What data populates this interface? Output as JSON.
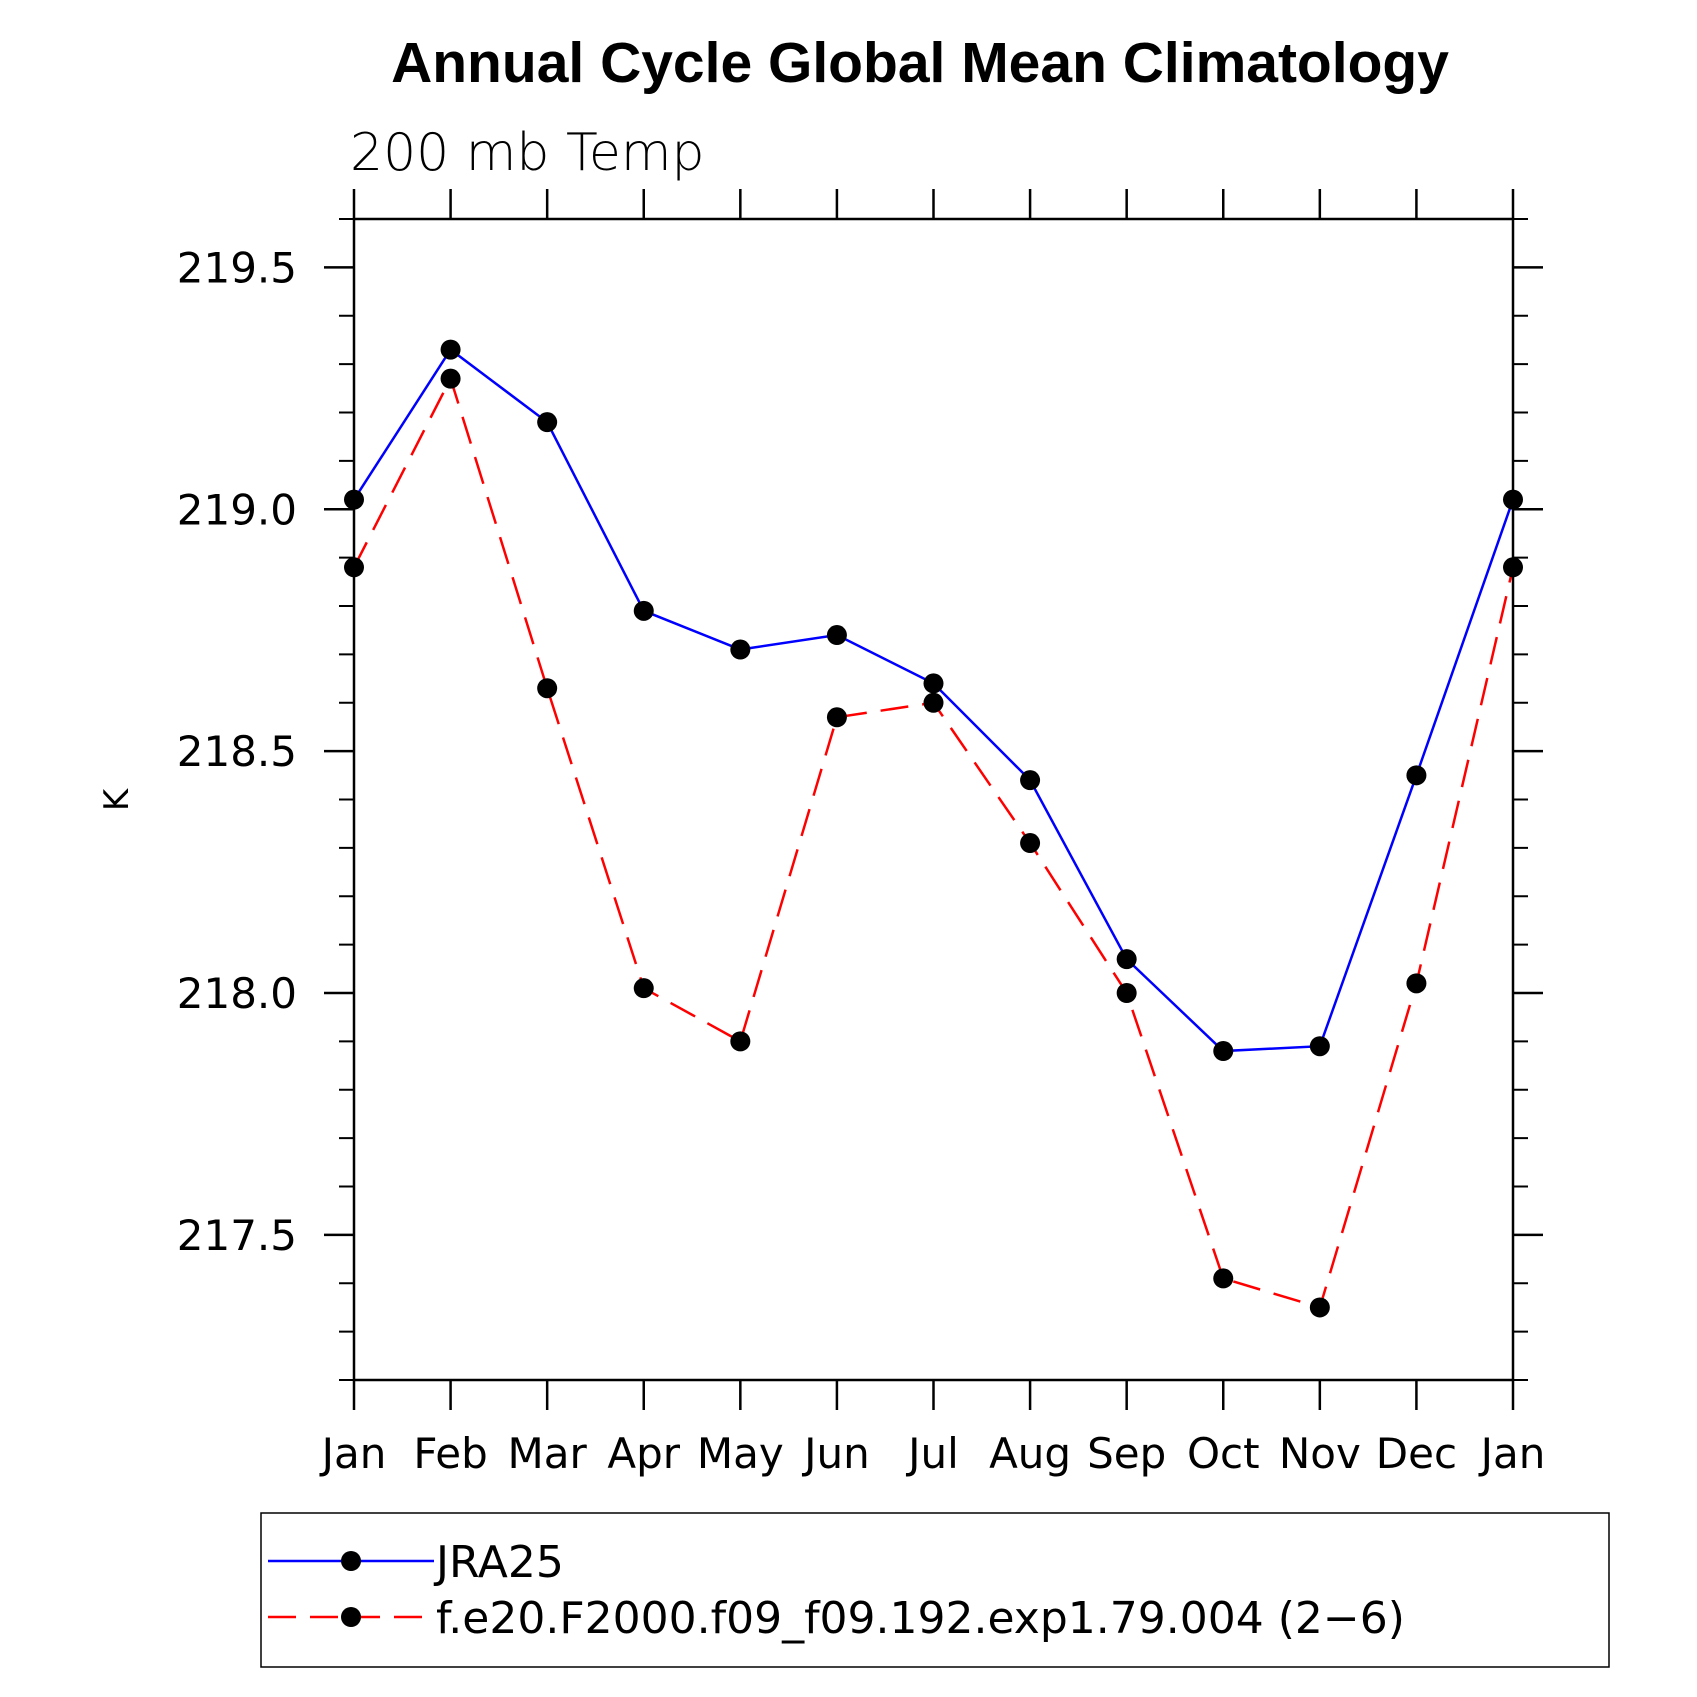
{
  "chart_data": {
    "type": "line",
    "title": "Annual Cycle Global Mean Climatology",
    "subtitle": "200 mb Temp",
    "xlabel": "",
    "ylabel": "K",
    "categories": [
      "Jan",
      "Feb",
      "Mar",
      "Apr",
      "May",
      "Jun",
      "Jul",
      "Aug",
      "Sep",
      "Oct",
      "Nov",
      "Dec",
      "Jan"
    ],
    "ylim": [
      217.2,
      219.6
    ],
    "yticks": [
      217.5,
      218.0,
      218.5,
      219.0,
      219.5
    ],
    "ytick_labels": [
      "217.5",
      "218.0",
      "218.5",
      "219.0",
      "219.5"
    ],
    "yminor_step": 0.1,
    "series": [
      {
        "name": "JRA25",
        "color": "#0000ff",
        "style": "solid",
        "marker": "circle",
        "values": [
          219.02,
          219.33,
          219.18,
          218.79,
          218.71,
          218.74,
          218.64,
          218.44,
          218.07,
          217.88,
          217.89,
          218.45,
          219.02
        ]
      },
      {
        "name": "f.e20.F2000.f09_f09.192.exp1.79.004 (2−6)",
        "color": "#ff0000",
        "style": "dashed",
        "marker": "circle",
        "values": [
          218.88,
          219.27,
          218.63,
          218.01,
          217.9,
          218.57,
          218.6,
          218.31,
          218.0,
          217.41,
          217.35,
          218.02,
          218.88
        ]
      }
    ],
    "legend_position": "bottom"
  }
}
